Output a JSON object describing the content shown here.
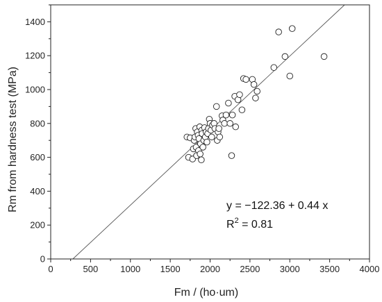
{
  "chart_data": {
    "type": "scatter",
    "xlabel": "Fm / (ho·um)",
    "ylabel": "Rm from hardness test (MPa)",
    "xlim": [
      0,
      4000
    ],
    "ylim": [
      0,
      1500
    ],
    "xticks": [
      "0",
      "500",
      "1000",
      "1500",
      "2000",
      "2500",
      "3000",
      "3500",
      "4000"
    ],
    "yticks": [
      "0",
      "200",
      "400",
      "600",
      "800",
      "1000",
      "1200",
      "1400"
    ],
    "grid": false,
    "marker": "open-circle",
    "fit_line": {
      "intercept": -122.36,
      "slope": 0.44
    },
    "annotation": {
      "equation": "y = −122.36 + 0.44 x",
      "r2_label": "R",
      "r2_sup": "2",
      "r2_value": " = 0.81"
    },
    "points": [
      [
        1710,
        720
      ],
      [
        1730,
        600
      ],
      [
        1750,
        715
      ],
      [
        1780,
        590
      ],
      [
        1790,
        650
      ],
      [
        1800,
        700
      ],
      [
        1810,
        720
      ],
      [
        1820,
        770
      ],
      [
        1825,
        660
      ],
      [
        1830,
        610
      ],
      [
        1840,
        750
      ],
      [
        1850,
        730
      ],
      [
        1855,
        640
      ],
      [
        1860,
        710
      ],
      [
        1870,
        780
      ],
      [
        1875,
        620
      ],
      [
        1880,
        680
      ],
      [
        1890,
        585
      ],
      [
        1895,
        760
      ],
      [
        1900,
        740
      ],
      [
        1910,
        660
      ],
      [
        1920,
        700
      ],
      [
        1930,
        775
      ],
      [
        1940,
        720
      ],
      [
        1950,
        750
      ],
      [
        1960,
        690
      ],
      [
        1970,
        740
      ],
      [
        1980,
        770
      ],
      [
        1990,
        825
      ],
      [
        2000,
        800
      ],
      [
        2010,
        760
      ],
      [
        2020,
        720
      ],
      [
        2030,
        790
      ],
      [
        2050,
        800
      ],
      [
        2060,
        770
      ],
      [
        2080,
        900
      ],
      [
        2090,
        700
      ],
      [
        2100,
        750
      ],
      [
        2110,
        770
      ],
      [
        2120,
        720
      ],
      [
        2150,
        845
      ],
      [
        2160,
        820
      ],
      [
        2180,
        800
      ],
      [
        2200,
        850
      ],
      [
        2230,
        920
      ],
      [
        2250,
        800
      ],
      [
        2270,
        610
      ],
      [
        2280,
        850
      ],
      [
        2310,
        960
      ],
      [
        2320,
        780
      ],
      [
        2350,
        940
      ],
      [
        2370,
        970
      ],
      [
        2400,
        880
      ],
      [
        2420,
        1065
      ],
      [
        2450,
        1060
      ],
      [
        2530,
        1060
      ],
      [
        2550,
        1030
      ],
      [
        2570,
        950
      ],
      [
        2590,
        990
      ],
      [
        2800,
        1130
      ],
      [
        2860,
        1340
      ],
      [
        2940,
        1195
      ],
      [
        3000,
        1080
      ],
      [
        3030,
        1360
      ],
      [
        3430,
        1195
      ]
    ]
  }
}
